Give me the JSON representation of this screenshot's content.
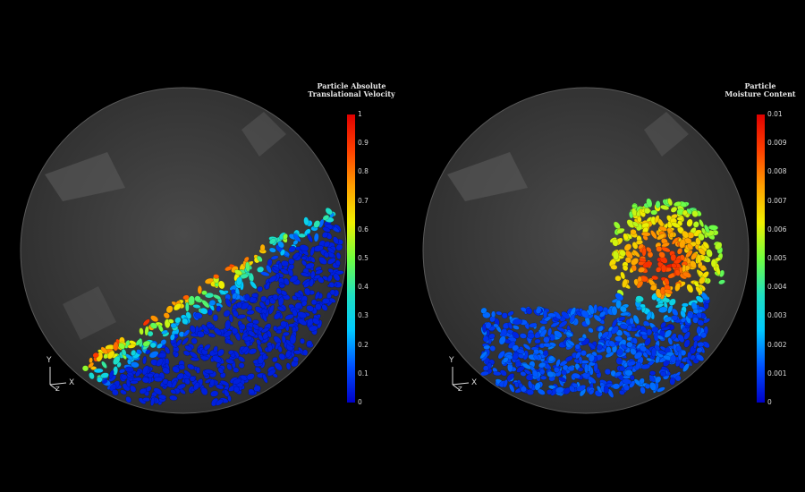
{
  "panels": [
    {
      "colorbar_title_line1": "Particle Absolute",
      "colorbar_title_line2": "Translational Velocity",
      "ticks": [
        "1",
        "0.9",
        "0.8",
        "0.7",
        "0.6",
        "0.5",
        "0.4",
        "0.3",
        "0.2",
        "0.1",
        "0"
      ],
      "axes": {
        "y": "Y",
        "x": "X",
        "z": "Z"
      }
    },
    {
      "colorbar_title_line1": "Particle",
      "colorbar_title_line2": "Moisture Content",
      "ticks": [
        "0.01",
        "0.009",
        "0.008",
        "0.007",
        "0.006",
        "0.005",
        "0.004",
        "0.003",
        "0.002",
        "0.001",
        "0"
      ],
      "axes": {
        "y": "Y",
        "x": "X",
        "z": "Z"
      }
    }
  ],
  "colors": {
    "background": "#000000",
    "drum": "#3c3c3c",
    "colormap": [
      "#0000c8",
      "#0050ff",
      "#00c8ff",
      "#20e0c0",
      "#70ff40",
      "#f0f000",
      "#ffa000",
      "#ff4000",
      "#e00000"
    ]
  }
}
